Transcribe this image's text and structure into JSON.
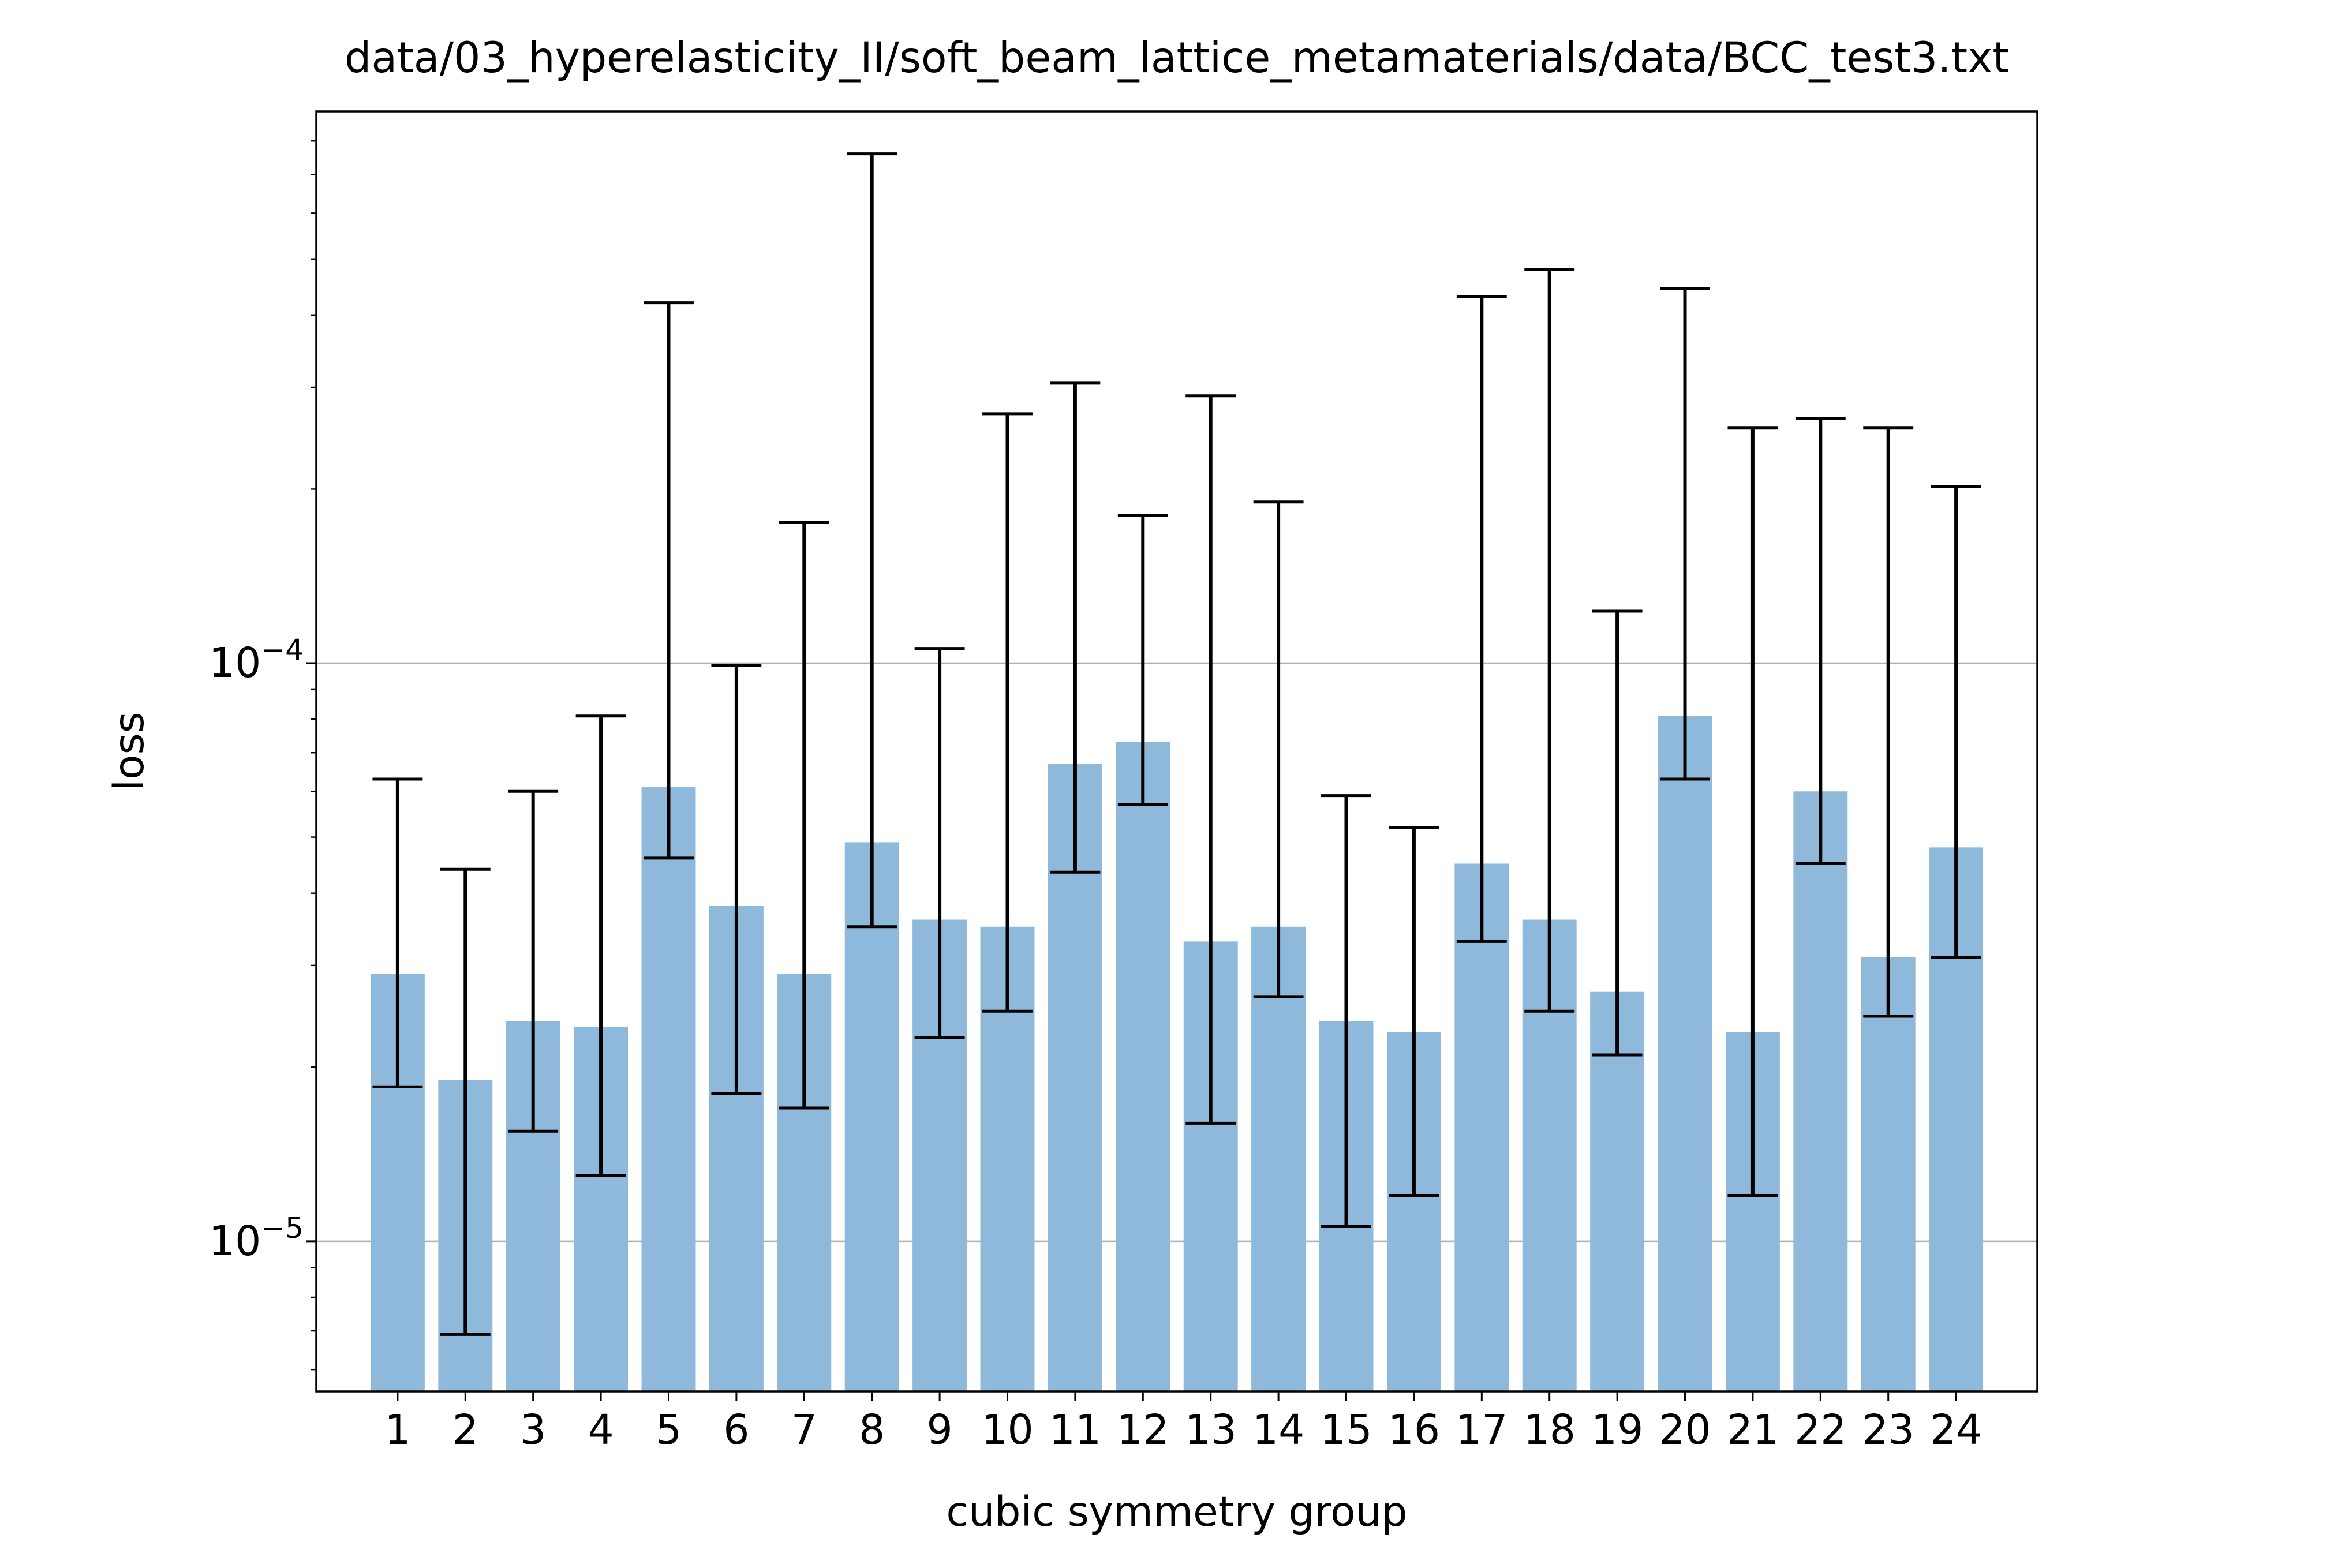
{
  "chart_data": {
    "type": "bar",
    "title": "data/03_hyperelasticity_II/soft_beam_lattice_metamaterials/data/BCC_test3.txt",
    "xlabel": "cubic symmetry group",
    "ylabel": "loss",
    "yscale": "log",
    "ylim": [
      5.5e-06,
      0.0009
    ],
    "grid": "y-major",
    "categories": [
      "1",
      "2",
      "3",
      "4",
      "5",
      "6",
      "7",
      "8",
      "9",
      "10",
      "11",
      "12",
      "13",
      "14",
      "15",
      "16",
      "17",
      "18",
      "19",
      "20",
      "21",
      "22",
      "23",
      "24"
    ],
    "values": [
      2.9e-05,
      1.9e-05,
      2.4e-05,
      2.35e-05,
      6.1e-05,
      3.8e-05,
      2.9e-05,
      4.9e-05,
      3.6e-05,
      3.5e-05,
      6.7e-05,
      7.3e-05,
      3.3e-05,
      3.5e-05,
      2.4e-05,
      2.3e-05,
      4.5e-05,
      3.6e-05,
      2.7e-05,
      8.1e-05,
      2.3e-05,
      6e-05,
      3.1e-05,
      4.8e-05
    ],
    "error_low": [
      1.85e-05,
      6.9e-06,
      1.55e-05,
      1.3e-05,
      4.6e-05,
      1.8e-05,
      1.7e-05,
      3.5e-05,
      2.25e-05,
      2.5e-05,
      4.35e-05,
      5.7e-05,
      1.6e-05,
      2.65e-05,
      1.06e-05,
      1.2e-05,
      3.3e-05,
      2.5e-05,
      2.1e-05,
      6.3e-05,
      1.2e-05,
      4.5e-05,
      2.45e-05,
      3.1e-05
    ],
    "error_high": [
      6.3e-05,
      4.4e-05,
      6e-05,
      8.1e-05,
      0.00042,
      9.9e-05,
      0.000175,
      0.00076,
      0.000106,
      0.00027,
      0.000305,
      0.00018,
      0.00029,
      0.00019,
      5.9e-05,
      5.2e-05,
      0.00043,
      0.00048,
      0.000123,
      0.000445,
      0.000255,
      0.000265,
      0.000255,
      0.000202
    ],
    "bar_color": "#8fb9da",
    "errorbar_color": "#000000",
    "yticks_major": [
      {
        "value": 1e-05,
        "label": "10",
        "exp": "−5"
      },
      {
        "value": 0.0001,
        "label": "10",
        "exp": "−4"
      }
    ]
  }
}
